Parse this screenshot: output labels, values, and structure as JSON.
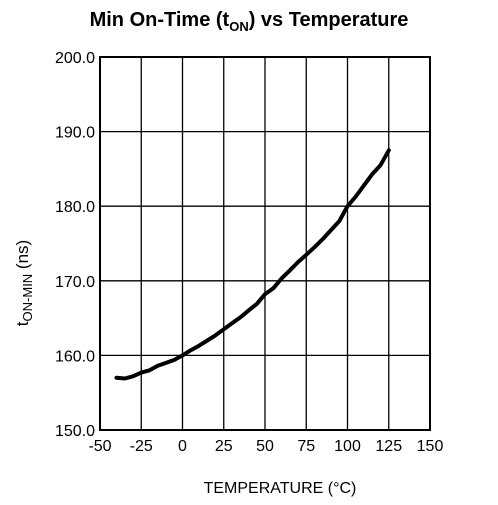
{
  "chart_data": {
    "type": "line",
    "title": {
      "main": "Min On-Time (t",
      "sub": "ON",
      "end": ") vs Temperature"
    },
    "xlabel": "TEMPERATURE (°C)",
    "ylabel": {
      "main": "t",
      "sub": "ON-MIN",
      "end": " (ns)"
    },
    "xlim": [
      -50,
      150
    ],
    "ylim": [
      150,
      200
    ],
    "x_ticks": [
      "-50",
      "-25",
      "0",
      "25",
      "50",
      "75",
      "100",
      "125",
      "150"
    ],
    "y_ticks": [
      "150.0",
      "160.0",
      "170.0",
      "180.0",
      "190.0",
      "200.0"
    ],
    "grid": true,
    "series": [
      {
        "x": [
          -40,
          -35,
          -30,
          -25,
          -20,
          -15,
          -10,
          -5,
          0,
          5,
          10,
          15,
          20,
          25,
          30,
          35,
          40,
          45,
          50,
          55,
          60,
          65,
          70,
          75,
          80,
          85,
          90,
          95,
          100,
          105,
          110,
          115,
          120,
          125
        ],
        "y": [
          157.0,
          156.9,
          157.2,
          157.7,
          158.0,
          158.6,
          159.0,
          159.4,
          160.0,
          160.7,
          161.3,
          162.0,
          162.7,
          163.5,
          164.3,
          165.1,
          166.0,
          166.9,
          168.2,
          169.0,
          170.3,
          171.4,
          172.5,
          173.5,
          174.5,
          175.6,
          176.8,
          178.0,
          180.0,
          181.3,
          182.8,
          184.3,
          185.5,
          187.5
        ]
      }
    ],
    "line_color": "#000000"
  }
}
